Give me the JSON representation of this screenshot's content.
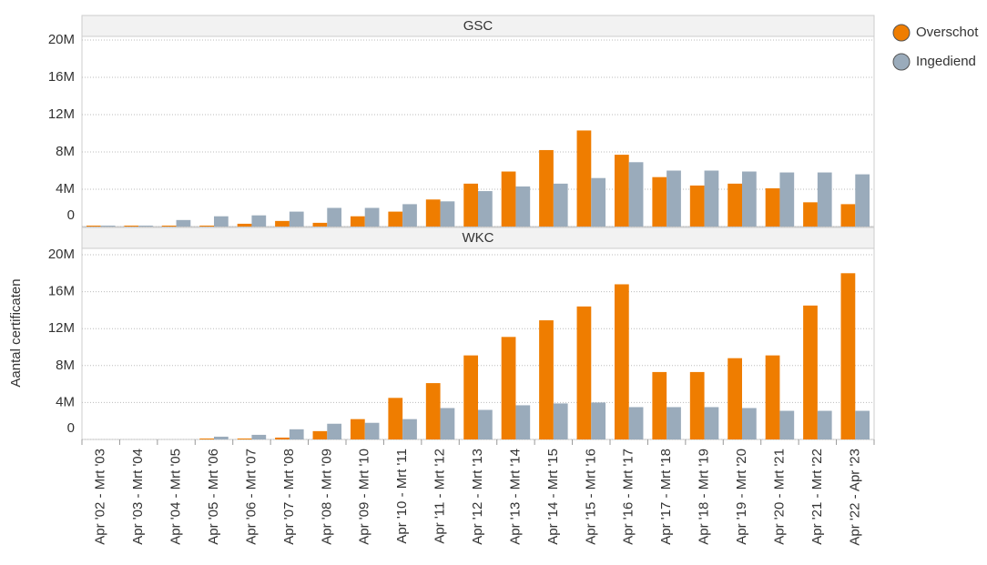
{
  "chart_data": [
    {
      "type": "bar",
      "title": "GSC",
      "y_label": "Aantal certificaten",
      "ylim": [
        0,
        20000000
      ],
      "yticks": [
        {
          "value": 0,
          "label": "0"
        },
        {
          "value": 4000000,
          "label": "4M"
        },
        {
          "value": 8000000,
          "label": "8M"
        },
        {
          "value": 12000000,
          "label": "12M"
        },
        {
          "value": 16000000,
          "label": "16M"
        },
        {
          "value": 20000000,
          "label": "20M"
        }
      ],
      "series": [
        {
          "name": "Overschot",
          "color": "#ef7d00",
          "values": [
            100000,
            100000,
            100000,
            100000,
            300000,
            600000,
            400000,
            1100000,
            1600000,
            2900000,
            4600000,
            5900000,
            8200000,
            10300000,
            7700000,
            5300000,
            4400000,
            4600000,
            4100000,
            2600000,
            2400000
          ]
        },
        {
          "name": "Ingediend",
          "color": "#9aabbb",
          "values": [
            100000,
            100000,
            700000,
            1100000,
            1200000,
            1600000,
            2000000,
            2000000,
            2400000,
            2700000,
            3800000,
            4300000,
            4600000,
            5200000,
            6900000,
            6000000,
            6000000,
            5900000,
            5800000,
            5800000,
            5600000
          ]
        }
      ]
    },
    {
      "type": "bar",
      "title": "WKC",
      "categories": [
        "Apr '02 - Mrt '03",
        "Apr '03 - Mrt '04",
        "Apr '04 - Mrt '05",
        "Apr '05 - Mrt '06",
        "Apr '06 - Mrt '07",
        "Apr '07 - Mrt '08",
        "Apr '08 - Mrt '09",
        "Apr '09 - Mrt '10",
        "Apr '10 - Mrt '11",
        "Apr '11 - Mrt '12",
        "Apr '12 - Mrt '13",
        "Apr '13 - Mrt '14",
        "Apr '14 - Mrt '15",
        "Apr '15 - Mrt '16",
        "Apr '16 - Mrt '17",
        "Apr '17 - Mrt '18",
        "Apr '18 - Mrt '19",
        "Apr '19 - Mrt '20",
        "Apr '20 - Mrt '21",
        "Apr '21 - Mrt '22",
        "Apr '22 - Apr '23"
      ],
      "ylim": [
        0,
        20000000
      ],
      "yticks": [
        {
          "value": 0,
          "label": "0"
        },
        {
          "value": 4000000,
          "label": "4M"
        },
        {
          "value": 8000000,
          "label": "8M"
        },
        {
          "value": 12000000,
          "label": "12M"
        },
        {
          "value": 16000000,
          "label": "16M"
        },
        {
          "value": 20000000,
          "label": "20M"
        }
      ],
      "series": [
        {
          "name": "Overschot",
          "color": "#ef7d00",
          "values": [
            0,
            0,
            0,
            100000,
            100000,
            200000,
            900000,
            2200000,
            4500000,
            6100000,
            9100000,
            11100000,
            12900000,
            14400000,
            16800000,
            7300000,
            7300000,
            8800000,
            9100000,
            14500000,
            18000000
          ]
        },
        {
          "name": "Ingediend",
          "color": "#9aabbb",
          "values": [
            0,
            0,
            0,
            300000,
            500000,
            1100000,
            1700000,
            1800000,
            2200000,
            3400000,
            3200000,
            3700000,
            3900000,
            4000000,
            3500000,
            3500000,
            3500000,
            3400000,
            3100000,
            3100000,
            3100000
          ]
        }
      ]
    }
  ]
}
